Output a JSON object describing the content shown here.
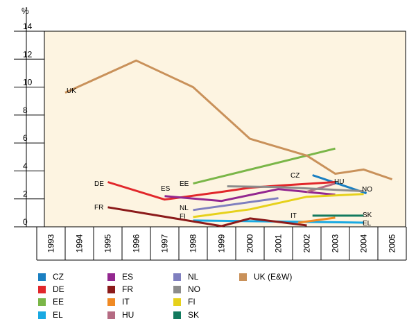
{
  "chart_data": {
    "type": "line",
    "title": "",
    "ylabel": "%",
    "xlabel": "",
    "ylim": [
      0,
      14
    ],
    "yticks": [
      0,
      2,
      4,
      6,
      8,
      10,
      12,
      14
    ],
    "categories": [
      "1993",
      "1994",
      "1995",
      "1996",
      "1997",
      "1998",
      "1999",
      "2000",
      "2001",
      "2002",
      "2003",
      "2004",
      "2005"
    ],
    "series": [
      {
        "name": "CZ",
        "label": "CZ",
        "color": "#1a7fc1",
        "points": [
          [
            2002.2,
            3.7
          ],
          [
            2004.1,
            2.4
          ]
        ]
      },
      {
        "name": "DE",
        "label": "DE",
        "color": "#e1272b",
        "points": [
          [
            1995,
            3.2
          ],
          [
            1997,
            1.95
          ],
          [
            1999,
            2.5
          ],
          [
            2000,
            2.8
          ],
          [
            2001,
            2.95
          ],
          [
            2003,
            3.2
          ]
        ]
      },
      {
        "name": "EE",
        "label": "EE",
        "color": "#7ab648",
        "points": [
          [
            1998,
            3.1
          ],
          [
            2003,
            5.6
          ]
        ]
      },
      {
        "name": "EL",
        "label": "EL",
        "color": "#19a9e2",
        "points": [
          [
            1998,
            0.45
          ],
          [
            2000,
            0.4
          ],
          [
            2004,
            0.3
          ]
        ]
      },
      {
        "name": "ES",
        "label": "ES",
        "color": "#93278f",
        "points": [
          [
            1997,
            2.2
          ],
          [
            1999,
            1.85
          ],
          [
            2001,
            2.7
          ],
          [
            2003,
            2.3
          ]
        ]
      },
      {
        "name": "FR",
        "label": "FR",
        "color": "#8b1a1a",
        "points": [
          [
            1995,
            1.4
          ],
          [
            1999,
            0.05
          ],
          [
            2000,
            0.6
          ],
          [
            2002,
            0.1
          ]
        ]
      },
      {
        "name": "IT",
        "label": "IT",
        "color": "#f08a24",
        "points": [
          [
            2001.7,
            0.3
          ],
          [
            2003,
            0.65
          ]
        ]
      },
      {
        "name": "HU",
        "label": "HU",
        "color": "#b56b83",
        "points": [
          [
            2002,
            2.5
          ],
          [
            2003,
            3.1
          ]
        ]
      },
      {
        "name": "NL",
        "label": "NL",
        "color": "#7f7fbf",
        "points": [
          [
            1998,
            1.2
          ],
          [
            2001,
            2.05
          ]
        ]
      },
      {
        "name": "NO",
        "label": "NO",
        "color": "#8c8c8c",
        "points": [
          [
            1999.2,
            2.9
          ],
          [
            2001,
            2.85
          ],
          [
            2004,
            2.55
          ]
        ]
      },
      {
        "name": "FI",
        "label": "FI",
        "color": "#e6d11b",
        "points": [
          [
            1998,
            0.7
          ],
          [
            2000,
            1.25
          ],
          [
            2002,
            2.15
          ],
          [
            2004,
            2.35
          ]
        ]
      },
      {
        "name": "SK",
        "label": "SK",
        "color": "#127a5e",
        "points": [
          [
            2002.2,
            0.8
          ],
          [
            2004,
            0.8
          ]
        ]
      },
      {
        "name": "UK (E&W)",
        "label": "UK",
        "color": "#c9915a",
        "points": [
          [
            1993.5,
            9.6
          ],
          [
            1996,
            11.9
          ],
          [
            1998,
            10
          ],
          [
            2000,
            6.3
          ],
          [
            2002,
            5.1
          ],
          [
            2003,
            3.8
          ],
          [
            2004,
            4.1
          ],
          [
            2005,
            3.4
          ]
        ]
      }
    ]
  },
  "legend": {
    "items": [
      {
        "label": "CZ",
        "color": "#1a7fc1"
      },
      {
        "label": "ES",
        "color": "#93278f"
      },
      {
        "label": "NL",
        "color": "#7f7fbf"
      },
      {
        "label": "UK (E&W)",
        "color": "#c9915a"
      },
      {
        "label": "DE",
        "color": "#e1272b"
      },
      {
        "label": "FR",
        "color": "#8b1a1a"
      },
      {
        "label": "NO",
        "color": "#8c8c8c"
      },
      {
        "label": "EE",
        "color": "#7ab648"
      },
      {
        "label": "IT",
        "color": "#f08a24"
      },
      {
        "label": "FI",
        "color": "#e6d11b"
      },
      {
        "label": "EL",
        "color": "#19a9e2"
      },
      {
        "label": "HU",
        "color": "#b56b83"
      },
      {
        "label": "SK",
        "color": "#127a5e"
      }
    ]
  },
  "colors": {
    "plot_background": "#fdf4e1",
    "axis": "#000000"
  }
}
